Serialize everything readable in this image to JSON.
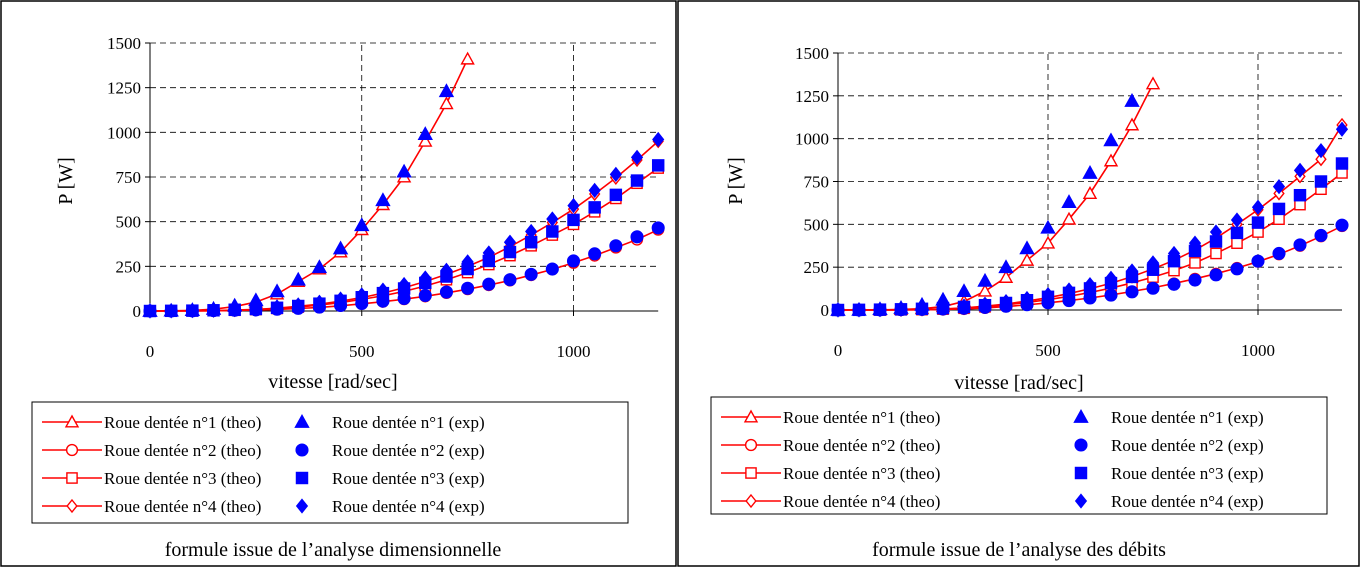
{
  "colors": {
    "theo": "#ff0000",
    "exp": "#0000ff",
    "grid": "#000000"
  },
  "chart_data": [
    {
      "type": "line",
      "caption": "formule issue de l’analyse dimensionnelle",
      "xlabel": "vitesse [rad/sec]",
      "ylabel": "P [W]",
      "xlim": [
        0,
        1200
      ],
      "ylim": [
        0,
        1500
      ],
      "xticks": [
        0,
        500,
        1000
      ],
      "yticks": [
        0,
        250,
        500,
        750,
        1000,
        1250,
        1500
      ],
      "grid": true,
      "legend_position": "bottom",
      "series": [
        {
          "name": "Roue dentée n°1 (theo)",
          "kind": "theo",
          "marker": "triangle",
          "x": [
            0,
            50,
            100,
            150,
            200,
            250,
            300,
            350,
            400,
            450,
            500,
            550,
            600,
            650,
            700,
            750
          ],
          "y": [
            0,
            1,
            3,
            10,
            25,
            50,
            95,
            165,
            235,
            330,
            455,
            595,
            750,
            950,
            1160,
            1410
          ]
        },
        {
          "name": "Roue dentée n°2 (theo)",
          "kind": "theo",
          "marker": "circle",
          "x": [
            0,
            50,
            100,
            150,
            200,
            250,
            300,
            350,
            400,
            450,
            500,
            550,
            600,
            650,
            700,
            750,
            800,
            850,
            900,
            950,
            1000,
            1050,
            1100,
            1150,
            1200
          ],
          "y": [
            0,
            0,
            0,
            1,
            3,
            5,
            9,
            14,
            20,
            29,
            40,
            52,
            66,
            82,
            101,
            122,
            145,
            171,
            201,
            233,
            270,
            310,
            355,
            400,
            455
          ]
        },
        {
          "name": "Roue dentée n°3 (theo)",
          "kind": "theo",
          "marker": "square",
          "x": [
            0,
            50,
            100,
            150,
            200,
            250,
            300,
            350,
            400,
            450,
            500,
            550,
            600,
            650,
            700,
            750,
            800,
            850,
            900,
            950,
            1000,
            1050,
            1100,
            1150,
            1200
          ],
          "y": [
            0,
            0,
            1,
            2,
            4,
            8,
            14,
            22,
            33,
            47,
            65,
            85,
            110,
            140,
            175,
            215,
            260,
            310,
            365,
            425,
            485,
            555,
            630,
            715,
            800
          ]
        },
        {
          "name": "Roue dentée n°4 (theo)",
          "kind": "theo",
          "marker": "diamond",
          "x": [
            0,
            50,
            100,
            150,
            200,
            250,
            300,
            350,
            400,
            450,
            500,
            550,
            600,
            650,
            700,
            750,
            800,
            850,
            900,
            950,
            1000,
            1050,
            1100,
            1150,
            1200
          ],
          "y": [
            0,
            0,
            1,
            2,
            5,
            9,
            16,
            26,
            38,
            55,
            75,
            100,
            130,
            165,
            205,
            250,
            300,
            360,
            425,
            495,
            570,
            655,
            745,
            845,
            950
          ]
        },
        {
          "name": "Roue dentée n°1 (exp)",
          "kind": "exp",
          "marker": "triangle",
          "x": [
            0,
            50,
            100,
            150,
            200,
            250,
            300,
            350,
            400,
            450,
            500,
            550,
            600,
            650,
            700
          ],
          "y": [
            0,
            2,
            5,
            12,
            30,
            60,
            110,
            175,
            245,
            350,
            480,
            620,
            780,
            990,
            1230
          ]
        },
        {
          "name": "Roue dentée n°2 (exp)",
          "kind": "exp",
          "marker": "circle",
          "x": [
            0,
            50,
            100,
            150,
            200,
            250,
            300,
            350,
            400,
            450,
            500,
            550,
            600,
            650,
            700,
            750,
            800,
            850,
            900,
            950,
            1000,
            1050,
            1100,
            1150,
            1200
          ],
          "y": [
            0,
            0,
            1,
            2,
            4,
            6,
            10,
            15,
            22,
            31,
            42,
            55,
            70,
            87,
            106,
            127,
            150,
            175,
            205,
            235,
            280,
            320,
            365,
            415,
            465
          ]
        },
        {
          "name": "Roue dentée n°3 (exp)",
          "kind": "exp",
          "marker": "square",
          "x": [
            0,
            50,
            100,
            150,
            200,
            250,
            300,
            350,
            400,
            450,
            500,
            550,
            600,
            650,
            700,
            750,
            800,
            850,
            900,
            950,
            1000,
            1050,
            1100,
            1150,
            1200
          ],
          "y": [
            0,
            1,
            2,
            4,
            7,
            11,
            18,
            28,
            41,
            57,
            77,
            100,
            126,
            157,
            193,
            235,
            280,
            330,
            385,
            445,
            510,
            580,
            650,
            730,
            815
          ]
        },
        {
          "name": "Roue dentée n°4 (exp)",
          "kind": "exp",
          "marker": "diamond",
          "x": [
            0,
            50,
            100,
            150,
            200,
            250,
            300,
            350,
            400,
            450,
            500,
            550,
            600,
            650,
            700,
            750,
            800,
            850,
            900,
            950,
            1000,
            1050,
            1100,
            1150,
            1200
          ],
          "y": [
            0,
            1,
            2,
            5,
            9,
            15,
            23,
            34,
            49,
            67,
            90,
            117,
            148,
            185,
            228,
            275,
            325,
            385,
            445,
            515,
            590,
            675,
            765,
            860,
            960
          ]
        }
      ]
    },
    {
      "type": "line",
      "caption": "formule issue de l’analyse des débits",
      "xlabel": "vitesse [rad/sec]",
      "ylabel": "P [W]",
      "xlim": [
        0,
        1200
      ],
      "ylim": [
        0,
        1500
      ],
      "xticks": [
        0,
        500,
        1000
      ],
      "yticks": [
        0,
        250,
        500,
        750,
        1000,
        1250,
        1500
      ],
      "grid": true,
      "legend_position": "bottom",
      "series": [
        {
          "name": "Roue dentée n°1 (theo)",
          "kind": "theo",
          "marker": "triangle",
          "x": [
            0,
            50,
            100,
            150,
            200,
            250,
            300,
            350,
            400,
            450,
            500,
            550,
            600,
            650,
            700,
            750
          ],
          "y": [
            0,
            0,
            1,
            3,
            8,
            20,
            50,
            110,
            190,
            290,
            390,
            530,
            680,
            870,
            1080,
            1320
          ]
        },
        {
          "name": "Roue dentée n°2 (theo)",
          "kind": "theo",
          "marker": "circle",
          "x": [
            0,
            50,
            100,
            150,
            200,
            250,
            300,
            350,
            400,
            450,
            500,
            550,
            600,
            650,
            700,
            750,
            800,
            850,
            900,
            950,
            1000,
            1050,
            1100,
            1150,
            1200
          ],
          "y": [
            0,
            0,
            0,
            0,
            1,
            3,
            6,
            12,
            20,
            30,
            42,
            55,
            70,
            88,
            108,
            130,
            155,
            182,
            212,
            245,
            282,
            325,
            375,
            430,
            490
          ]
        },
        {
          "name": "Roue dentée n°3 (theo)",
          "kind": "theo",
          "marker": "square",
          "x": [
            0,
            50,
            100,
            150,
            200,
            250,
            300,
            350,
            400,
            450,
            500,
            550,
            600,
            650,
            700,
            750,
            800,
            850,
            900,
            950,
            1000,
            1050,
            1100,
            1150,
            1200
          ],
          "y": [
            0,
            0,
            0,
            1,
            2,
            5,
            10,
            18,
            30,
            44,
            60,
            80,
            102,
            128,
            158,
            192,
            230,
            275,
            330,
            390,
            455,
            530,
            615,
            705,
            800
          ]
        },
        {
          "name": "Roue dentée n°4 (theo)",
          "kind": "theo",
          "marker": "diamond",
          "x": [
            0,
            50,
            100,
            150,
            200,
            250,
            300,
            350,
            400,
            450,
            500,
            550,
            600,
            650,
            700,
            750,
            800,
            850,
            900,
            950,
            1000,
            1050,
            1100,
            1150,
            1200
          ],
          "y": [
            0,
            0,
            0,
            1,
            3,
            6,
            12,
            22,
            35,
            52,
            72,
            96,
            124,
            156,
            195,
            240,
            290,
            350,
            420,
            500,
            585,
            680,
            780,
            880,
            1080
          ]
        },
        {
          "name": "Roue dentée n°1 (exp)",
          "kind": "exp",
          "marker": "triangle",
          "x": [
            0,
            50,
            100,
            150,
            200,
            250,
            300,
            350,
            400,
            450,
            500,
            550,
            600,
            650,
            700
          ],
          "y": [
            0,
            1,
            5,
            12,
            30,
            60,
            110,
            170,
            250,
            360,
            480,
            630,
            800,
            990,
            1220
          ]
        },
        {
          "name": "Roue dentée n°2 (exp)",
          "kind": "exp",
          "marker": "circle",
          "x": [
            0,
            50,
            100,
            150,
            200,
            250,
            300,
            350,
            400,
            450,
            500,
            550,
            600,
            650,
            700,
            750,
            800,
            850,
            900,
            950,
            1000,
            1050,
            1100,
            1150,
            1200
          ],
          "y": [
            0,
            0,
            1,
            2,
            4,
            6,
            10,
            15,
            22,
            31,
            42,
            55,
            70,
            87,
            106,
            127,
            150,
            175,
            205,
            240,
            285,
            330,
            380,
            435,
            495
          ]
        },
        {
          "name": "Roue dentée n°3 (exp)",
          "kind": "exp",
          "marker": "square",
          "x": [
            0,
            50,
            100,
            150,
            200,
            250,
            300,
            350,
            400,
            450,
            500,
            550,
            600,
            650,
            700,
            750,
            800,
            850,
            900,
            950,
            1000,
            1050,
            1100,
            1150,
            1200
          ],
          "y": [
            0,
            1,
            2,
            4,
            7,
            11,
            18,
            28,
            41,
            57,
            77,
            100,
            126,
            157,
            193,
            235,
            285,
            345,
            400,
            450,
            510,
            590,
            670,
            750,
            855
          ]
        },
        {
          "name": "Roue dentée n°4 (exp)",
          "kind": "exp",
          "marker": "diamond",
          "x": [
            0,
            50,
            100,
            150,
            200,
            250,
            300,
            350,
            400,
            450,
            500,
            550,
            600,
            650,
            700,
            750,
            800,
            850,
            900,
            950,
            1000,
            1050,
            1100,
            1150,
            1200
          ],
          "y": [
            0,
            1,
            2,
            5,
            9,
            15,
            23,
            34,
            49,
            67,
            90,
            117,
            148,
            185,
            228,
            275,
            330,
            390,
            455,
            525,
            600,
            720,
            815,
            930,
            1055
          ]
        }
      ]
    }
  ]
}
